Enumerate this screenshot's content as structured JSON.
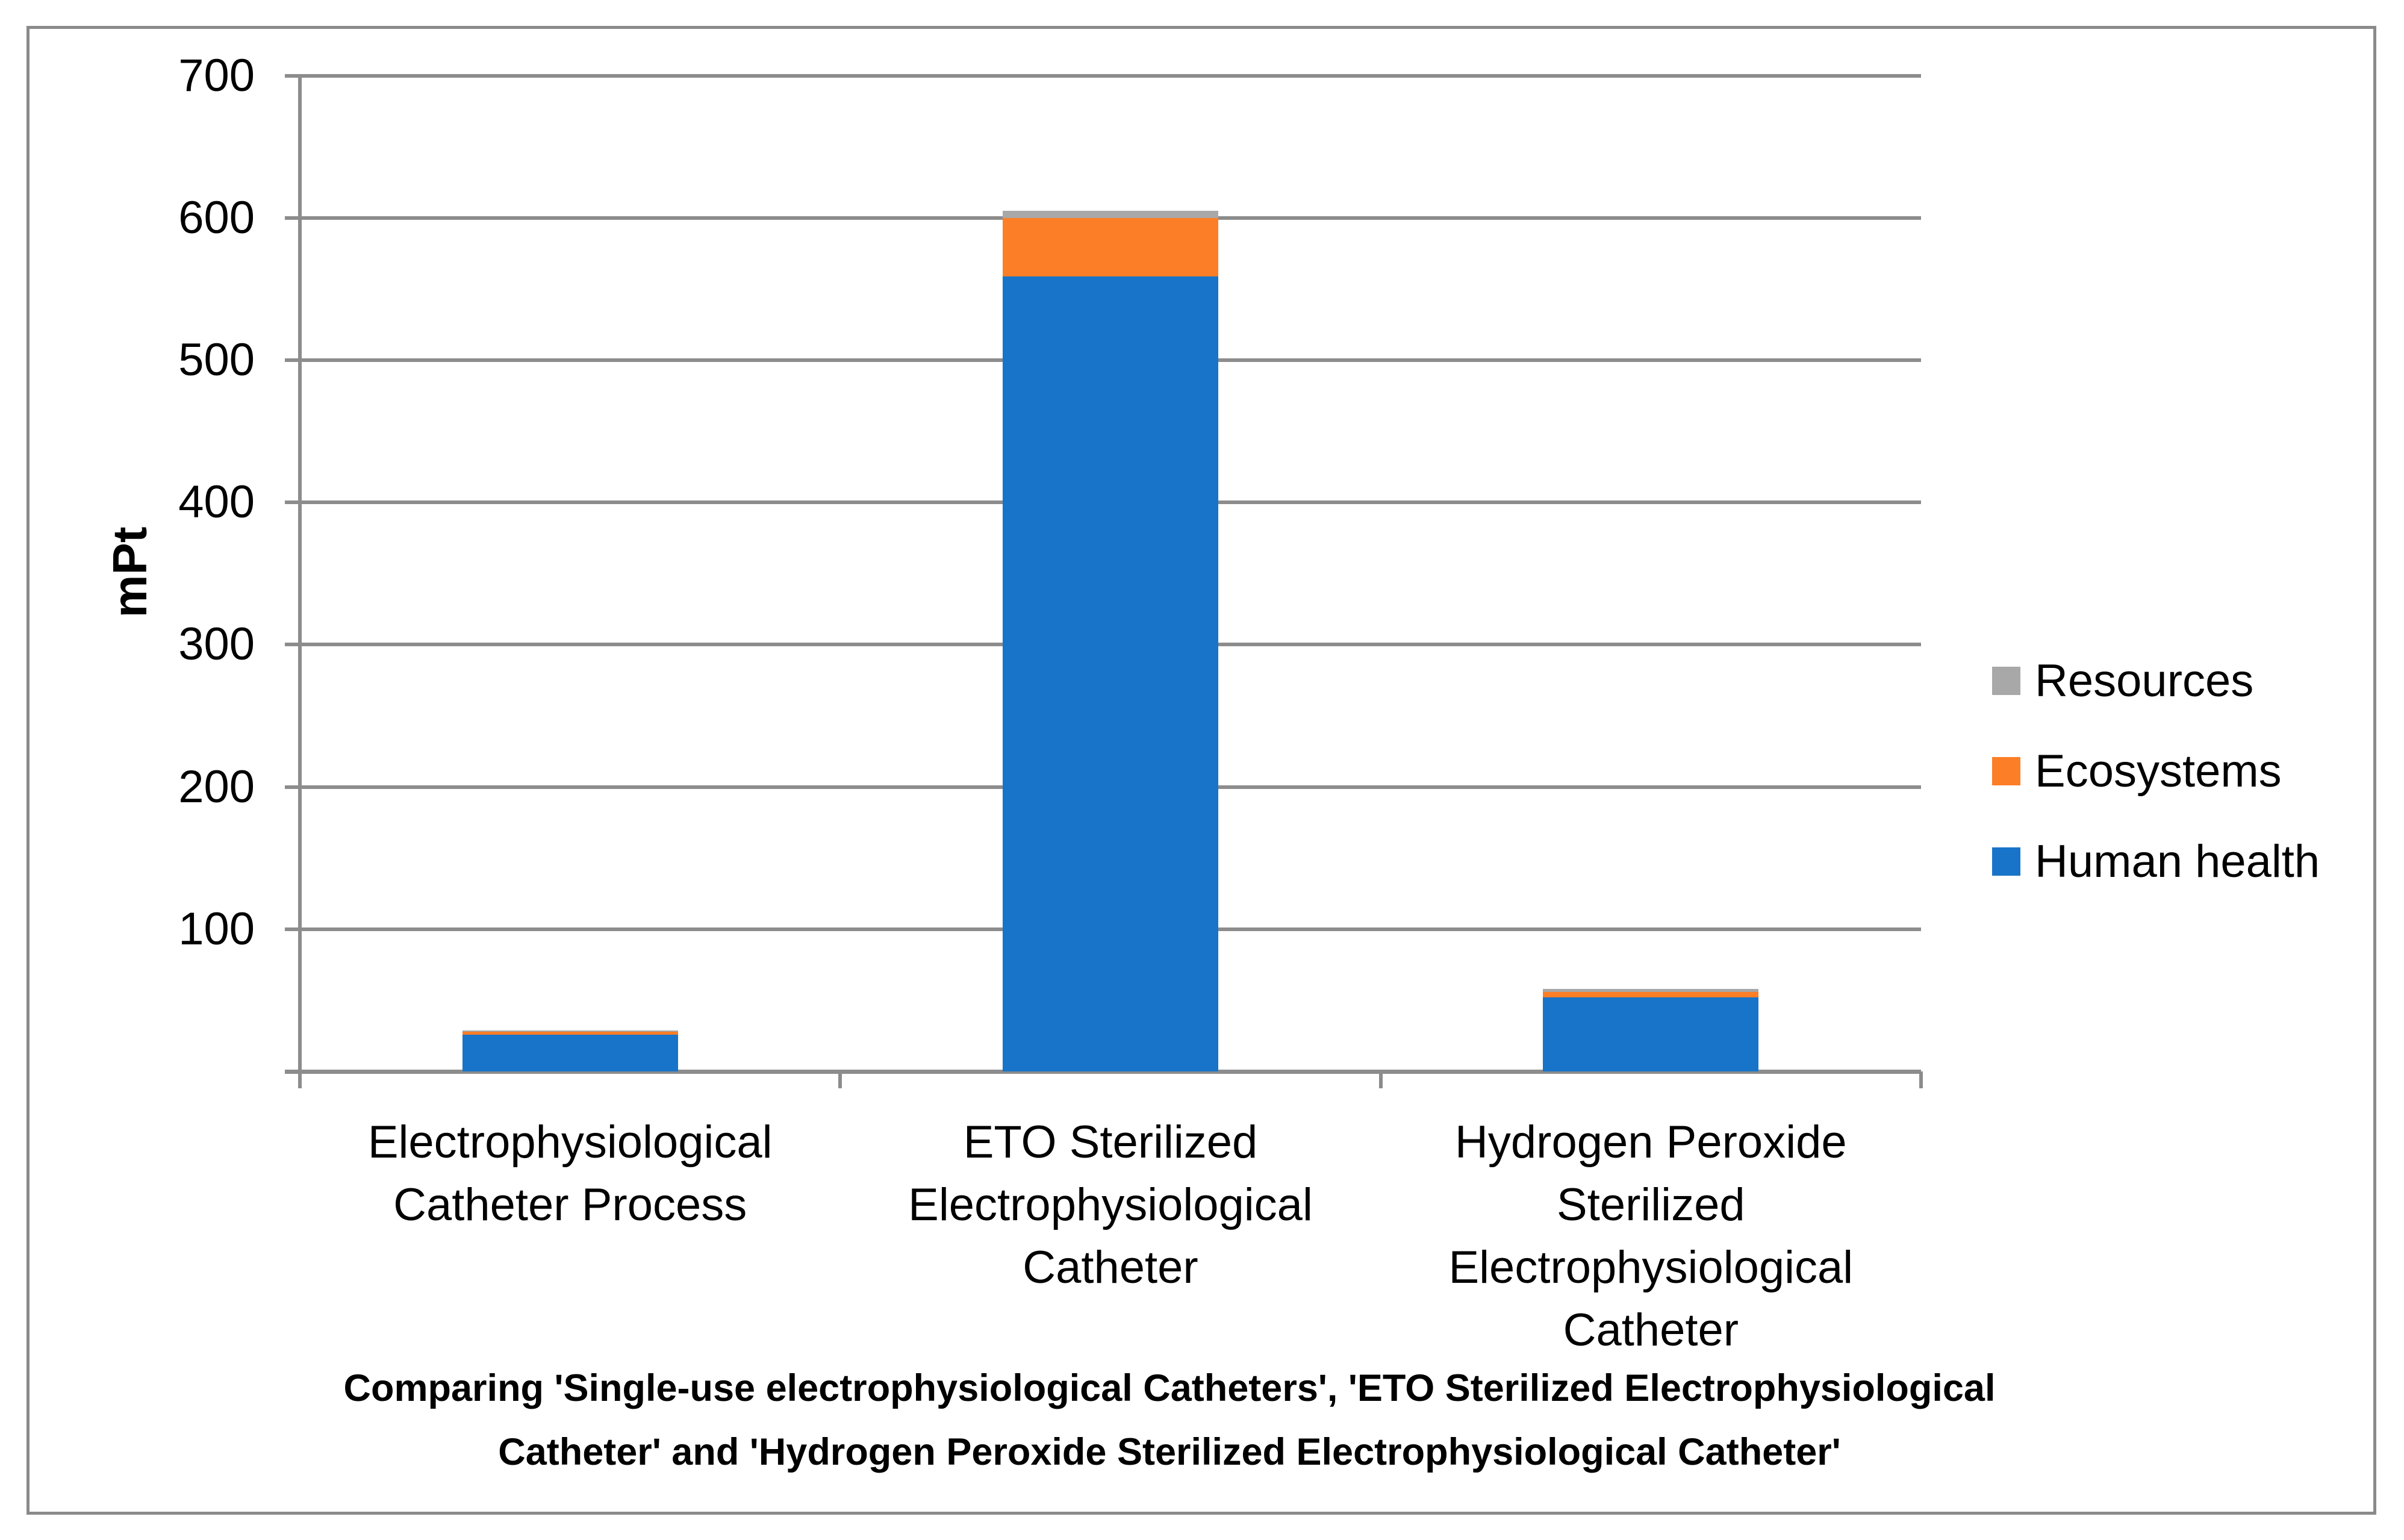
{
  "chart_data": {
    "type": "bar",
    "stacked": true,
    "title": "Comparing 'Single-use electrophysiological Catheters', 'ETO Sterilized Electrophysiological Catheter' and 'Hydrogen Peroxide Sterilized Electrophysiological Catheter'",
    "title_lines": [
      "Comparing 'Single-use electrophysiological Catheters', 'ETO Sterilized Electrophysiological",
      "Catheter' and 'Hydrogen Peroxide Sterilized Electrophysiological Catheter'"
    ],
    "ylabel": "mPt",
    "ylim": [
      0,
      700
    ],
    "ytick_interval": 100,
    "ytick_labels": [
      "700",
      "600",
      "500",
      "400",
      "300",
      "200",
      "100"
    ],
    "grid": true,
    "legend_position": "right",
    "categories": [
      "Electrophysiological Catheter Process",
      "ETO Sterilized Electrophysiological Catheter",
      "Hydrogen Peroxide Sterilized Electrophysiological Catheter"
    ],
    "category_label_lines": [
      [
        "Electrophysiological",
        "Catheter Process"
      ],
      [
        "ETO Sterilized",
        "Electrophysiological",
        "Catheter"
      ],
      [
        "Hydrogen Peroxide",
        "Sterilized",
        "Electrophysiological",
        "Catheter"
      ]
    ],
    "series": [
      {
        "name": "Human health",
        "color": "#1874C8",
        "values": [
          26,
          559,
          52
        ]
      },
      {
        "name": "Ecosystems",
        "color": "#FC7E26",
        "values": [
          2,
          41,
          4
        ]
      },
      {
        "name": "Resources",
        "color": "#A8A8A8",
        "values": [
          1,
          5,
          2
        ]
      }
    ],
    "legend_entries": [
      {
        "name": "Resources",
        "color": "#A8A8A8"
      },
      {
        "name": "Ecosystems",
        "color": "#FC7E26"
      },
      {
        "name": "Human health",
        "color": "#1874C8"
      }
    ]
  },
  "colors": {
    "human_health": "#1874C8",
    "ecosystems": "#FC7E26",
    "resources": "#A8A8A8",
    "gridline": "#8c8c8c",
    "border": "#8a8a8a",
    "background": "#ffffff",
    "text": "#000000"
  }
}
